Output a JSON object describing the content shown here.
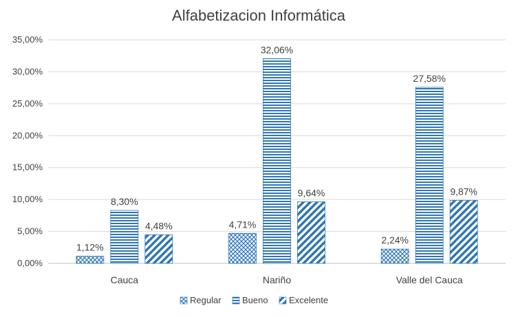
{
  "chart_data": {
    "type": "bar",
    "title": "Alfabetizacion Informática",
    "categories": [
      "Cauca",
      "Nariño",
      "Valle del Cauca"
    ],
    "series": [
      {
        "name": "Regular",
        "values": [
          1.12,
          4.71,
          2.24
        ],
        "labels": [
          "1,12%",
          "4,71%",
          "2,24%"
        ],
        "pattern": "crosshatch"
      },
      {
        "name": "Bueno",
        "values": [
          8.3,
          32.06,
          27.58
        ],
        "labels": [
          "8,30%",
          "32,06%",
          "27,58%"
        ],
        "pattern": "horizontal"
      },
      {
        "name": "Excelente",
        "values": [
          4.48,
          9.64,
          9.87
        ],
        "labels": [
          "4,48%",
          "9,64%",
          "9,87%"
        ],
        "pattern": "diagonal"
      }
    ],
    "ylim": [
      0,
      35
    ],
    "yticks": [
      0,
      5,
      10,
      15,
      20,
      25,
      30,
      35
    ],
    "ytick_labels": [
      "0,00%",
      "5,00%",
      "10,00%",
      "15,00%",
      "20,00%",
      "25,00%",
      "30,00%",
      "35,00%"
    ],
    "xlabel": "",
    "ylabel": "",
    "grid": true,
    "legend_position": "bottom",
    "colors": {
      "bar": "#2E75B6",
      "grid": "#D9D9D9",
      "text": "#404040"
    }
  }
}
